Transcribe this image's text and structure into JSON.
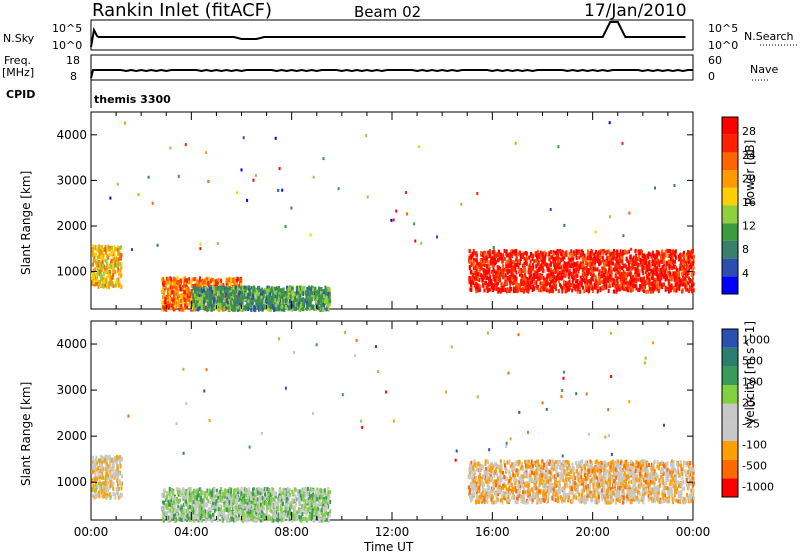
{
  "header": {
    "station": "Rankin Inlet (fitACF)",
    "beam": "Beam 02",
    "date": "17/Jan/2010"
  },
  "summary": {
    "nsky_label": "N.Sky",
    "nsky_ticks": [
      "10^5",
      "10^0"
    ],
    "nsearch_label": "N.Search",
    "nsearch_ticks": [
      "10^5",
      "10^0"
    ],
    "freq_label_1": "Freq.",
    "freq_label_2": "[MHz]",
    "freq_ticks": [
      "18",
      "8"
    ],
    "nave_label": "Nave",
    "nave_ticks": [
      "60",
      "0"
    ],
    "cpid_label": "CPID",
    "cpid_value": "themis 3300"
  },
  "colors": {
    "power": [
      "#0000ff",
      "#2a4fb0",
      "#3a7e6e",
      "#3c9a40",
      "#8fd040",
      "#ffd000",
      "#ff9a00",
      "#ff6400",
      "#ff2000",
      "#ff0000"
    ],
    "velocity": [
      "#ff0000",
      "#ff6a00",
      "#ffa000",
      "#c8c8c8",
      "#c8c8c8",
      "#80d040",
      "#3a9a58",
      "#2a7e70",
      "#2a50b0"
    ]
  },
  "chart_data": [
    {
      "type": "heatmap",
      "title": "Power",
      "ylabel": "Slant Range [km]",
      "xlabel": "",
      "xlim": [
        "00:00",
        "24:00"
      ],
      "ylim": [
        180,
        4500
      ],
      "yticks": [
        "1000",
        "2000",
        "3000",
        "4000"
      ],
      "colorbar": {
        "label": "Power [dB]",
        "ticks": [
          "28",
          "24",
          "20",
          "16",
          "12",
          "8",
          "4"
        ],
        "range": [
          0,
          30
        ]
      },
      "regions": [
        {
          "t": [
            0.0,
            1.2
          ],
          "r": [
            700,
            1600
          ],
          "v": 18
        },
        {
          "t": [
            2.8,
            6.0
          ],
          "r": [
            200,
            900
          ],
          "v": 22
        },
        {
          "t": [
            4.0,
            9.5
          ],
          "r": [
            200,
            700
          ],
          "v": 10
        },
        {
          "t": [
            15.0,
            24.0
          ],
          "r": [
            600,
            1500
          ],
          "v": 27
        }
      ]
    },
    {
      "type": "heatmap",
      "title": "Velocity",
      "ylabel": "Slant Range [km]",
      "xlabel": "Time UT",
      "xlim": [
        "00:00",
        "24:00"
      ],
      "ylim": [
        180,
        4500
      ],
      "yticks": [
        "1000",
        "2000",
        "3000",
        "4000"
      ],
      "xticks": [
        "00:00",
        "04:00",
        "08:00",
        "12:00",
        "16:00",
        "20:00",
        "00:00"
      ],
      "colorbar": {
        "label": "Velocity [m s^-1]",
        "ticks": [
          "1000",
          "500",
          "100",
          "25",
          "-25",
          "-100",
          "-500",
          "-1000"
        ],
        "range": [
          -1000,
          1000
        ]
      },
      "regions": [
        {
          "t": [
            0.0,
            1.2
          ],
          "r": [
            700,
            1600
          ],
          "v": -200
        },
        {
          "t": [
            2.8,
            9.5
          ],
          "r": [
            200,
            900
          ],
          "v": 150
        },
        {
          "t": [
            15.0,
            24.0
          ],
          "r": [
            600,
            1500
          ],
          "v": -300
        }
      ]
    }
  ]
}
